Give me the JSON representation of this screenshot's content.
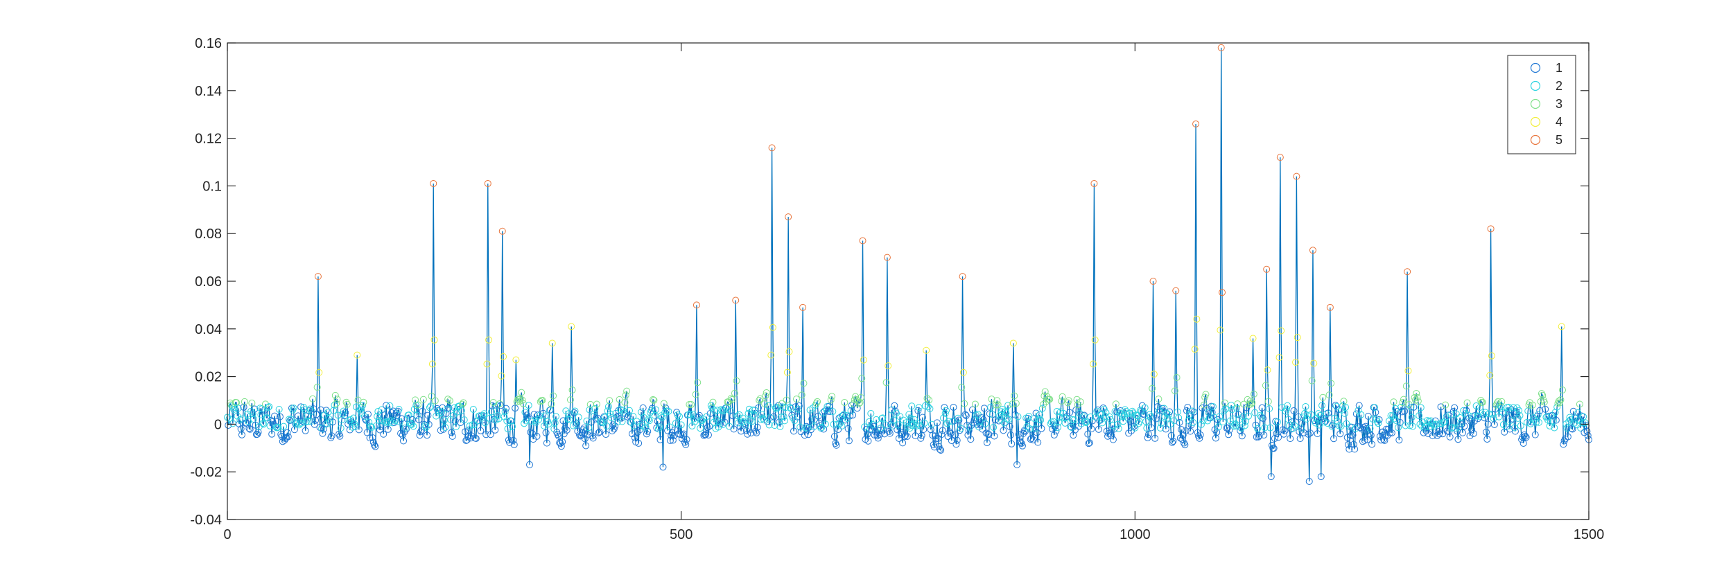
{
  "chart_data": {
    "type": "line",
    "title": "",
    "xlabel": "",
    "ylabel": "",
    "xlim": [
      0,
      1500
    ],
    "ylim": [
      -0.04,
      0.16
    ],
    "x_ticks": [
      0,
      500,
      1000,
      1500
    ],
    "x_tick_labels": [
      "0",
      "500",
      "1000",
      "1500"
    ],
    "y_ticks": [
      -0.04,
      -0.02,
      0,
      0.02,
      0.04,
      0.06,
      0.08,
      0.1,
      0.12,
      0.14,
      0.16
    ],
    "y_tick_labels": [
      "-0.04",
      "-0.02",
      "0",
      "0.02",
      "0.04",
      "0.06",
      "0.08",
      "0.1",
      "0.12",
      "0.14",
      "0.16"
    ],
    "grid": false,
    "legend_position": "top-right",
    "line_color": "#0072BD",
    "marker": "open-circle",
    "series_count": 1500,
    "legend": [
      {
        "label": "1",
        "color": "#1f77d4"
      },
      {
        "label": "2",
        "color": "#2ad2e0"
      },
      {
        "label": "3",
        "color": "#7fe08a"
      },
      {
        "label": "4",
        "color": "#f2ee3a"
      },
      {
        "label": "5",
        "color": "#e8743b"
      }
    ],
    "peaks": [
      {
        "x": 100,
        "y": 0.062
      },
      {
        "x": 143,
        "y": 0.029
      },
      {
        "x": 227,
        "y": 0.101
      },
      {
        "x": 287,
        "y": 0.101
      },
      {
        "x": 303,
        "y": 0.081
      },
      {
        "x": 318,
        "y": 0.027
      },
      {
        "x": 358,
        "y": 0.034
      },
      {
        "x": 379,
        "y": 0.041
      },
      {
        "x": 517,
        "y": 0.05
      },
      {
        "x": 560,
        "y": 0.052
      },
      {
        "x": 600,
        "y": 0.116
      },
      {
        "x": 618,
        "y": 0.087
      },
      {
        "x": 634,
        "y": 0.049
      },
      {
        "x": 700,
        "y": 0.077
      },
      {
        "x": 727,
        "y": 0.07
      },
      {
        "x": 770,
        "y": 0.031
      },
      {
        "x": 810,
        "y": 0.062
      },
      {
        "x": 866,
        "y": 0.034
      },
      {
        "x": 955,
        "y": 0.101
      },
      {
        "x": 1020,
        "y": 0.06
      },
      {
        "x": 1045,
        "y": 0.056
      },
      {
        "x": 1067,
        "y": 0.126
      },
      {
        "x": 1095,
        "y": 0.158
      },
      {
        "x": 1130,
        "y": 0.036
      },
      {
        "x": 1145,
        "y": 0.065
      },
      {
        "x": 1160,
        "y": 0.112
      },
      {
        "x": 1178,
        "y": 0.104
      },
      {
        "x": 1196,
        "y": 0.073
      },
      {
        "x": 1215,
        "y": 0.049
      },
      {
        "x": 1300,
        "y": 0.064
      },
      {
        "x": 1392,
        "y": 0.082
      },
      {
        "x": 1470,
        "y": 0.041
      }
    ],
    "dips": [
      {
        "x": 333,
        "y": -0.017
      },
      {
        "x": 480,
        "y": -0.018
      },
      {
        "x": 870,
        "y": -0.017
      },
      {
        "x": 1150,
        "y": -0.022
      },
      {
        "x": 1192,
        "y": -0.024
      },
      {
        "x": 1205,
        "y": -0.022
      }
    ],
    "baseline_range": [
      -0.012,
      0.016
    ]
  }
}
